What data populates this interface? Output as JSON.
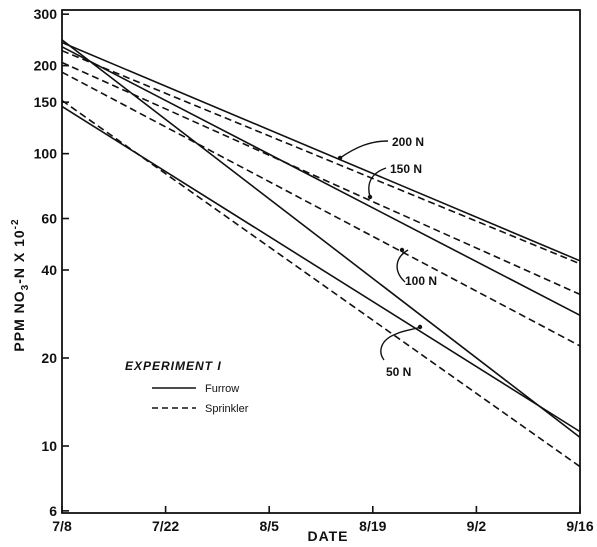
{
  "chart_data": {
    "type": "line",
    "xlabel": "DATE",
    "ylabel": "PPM NO3-N X 10-2",
    "ylabel_parts": {
      "pre": "PPM NO",
      "sub": "3",
      "mid": "-N X 10",
      "sup": "-2"
    },
    "y_scale": "log",
    "ylim": [
      5.9,
      310
    ],
    "xlim": [
      "7/8",
      "9/16"
    ],
    "x_ticks": [
      "7/8",
      "7/22",
      "8/5",
      "8/19",
      "9/2",
      "9/16"
    ],
    "y_ticks": [
      6,
      10,
      20,
      40,
      60,
      100,
      150,
      200,
      300
    ],
    "y_tick_labels": [
      "6",
      "10",
      "20",
      "40",
      "60",
      "100",
      "150",
      "200",
      "300"
    ],
    "grid": false,
    "legend": {
      "title": "EXPERIMENT I",
      "position": "lower-left",
      "entries": [
        {
          "label": "Furrow",
          "style": "solid"
        },
        {
          "label": "Sprinkler",
          "style": "dashed"
        }
      ]
    },
    "annotations": [
      "200 N",
      "150 N",
      "100 N",
      "50 N"
    ],
    "series": [
      {
        "treatment": "200 N",
        "method": "Furrow",
        "style": "solid",
        "x": [
          "7/8",
          "9/16"
        ],
        "values": [
          240,
          43
        ]
      },
      {
        "treatment": "200 N",
        "method": "Sprinkler",
        "style": "dashed",
        "x": [
          "7/8",
          "9/16"
        ],
        "values": [
          225,
          42
        ]
      },
      {
        "treatment": "150 N",
        "method": "Furrow",
        "style": "solid",
        "x": [
          "7/8",
          "9/16"
        ],
        "values": [
          232,
          28
        ]
      },
      {
        "treatment": "150 N",
        "method": "Sprinkler",
        "style": "dashed",
        "x": [
          "7/8",
          "9/16"
        ],
        "values": [
          205,
          33
        ]
      },
      {
        "treatment": "100 N",
        "method": "Furrow",
        "style": "solid",
        "x": [
          "7/8",
          "9/16"
        ],
        "values": [
          245,
          10.7
        ]
      },
      {
        "treatment": "100 N",
        "method": "Sprinkler",
        "style": "dashed",
        "x": [
          "7/8",
          "9/16"
        ],
        "values": [
          190,
          22
        ]
      },
      {
        "treatment": "50 N",
        "method": "Furrow",
        "style": "solid",
        "x": [
          "7/8",
          "9/16"
        ],
        "values": [
          145,
          11.2
        ]
      },
      {
        "treatment": "50 N",
        "method": "Sprinkler",
        "style": "dashed",
        "x": [
          "7/8",
          "9/16"
        ],
        "values": [
          152,
          8.5
        ]
      }
    ]
  }
}
